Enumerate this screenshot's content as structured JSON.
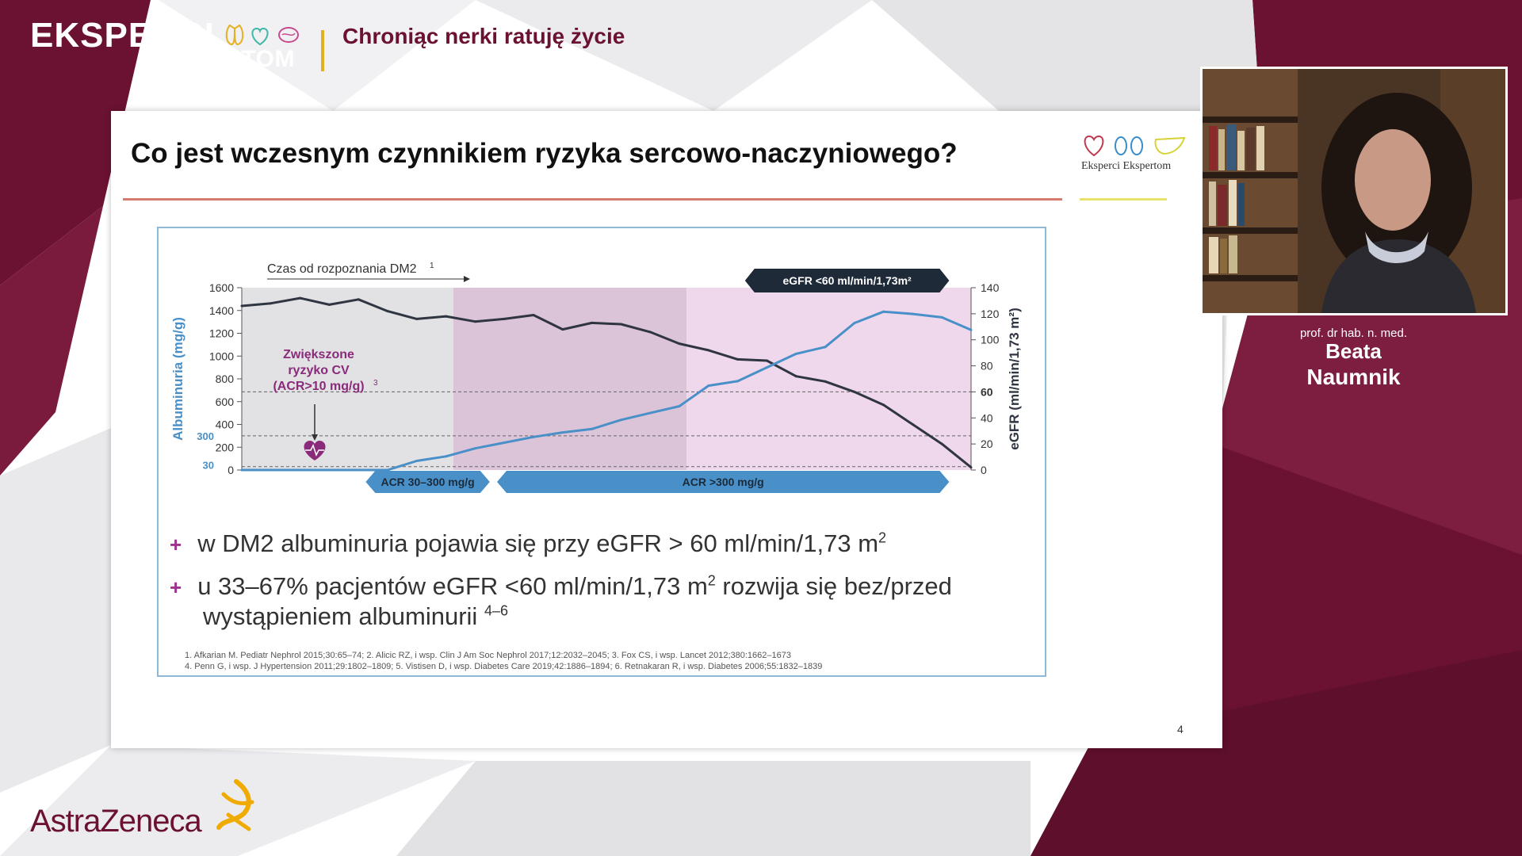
{
  "header": {
    "brand_line1": "EKSPERCI",
    "brand_line2": "EKSPERTOM",
    "tagline": "Chroniąc nerki ratuję życie"
  },
  "slide": {
    "title": "Co jest wczesnym czynnikiem ryzyka sercowo-naczyniowego?",
    "logo_text": "Eksperci Ekspertom",
    "page_number": "4",
    "bullets": [
      {
        "prefix": "+",
        "text": "w DM2 albuminuria pojawia się przy eGFR > 60 ml/min/1,73 m",
        "sup": "2",
        "line2": "",
        "tail": ""
      },
      {
        "prefix": "+",
        "text": "u 33–67% pacjentów eGFR <60 ml/min/1,73 m",
        "sup": "2",
        "line2": "wystąpieniem albuminurii ",
        "tail": " rozwija się bez/przed",
        "sup2": "4–6"
      }
    ],
    "references": [
      "1. Afkarian M. Pediatr Nephrol 2015;30:65–74; 2. Alicic RZ, i wsp. Clin J Am Soc Nephrol 2017;12:2032–2045; 3. Fox CS, i wsp. Lancet 2012;380:1662–1673",
      "4. Penn G, i wsp. J Hypertension 2011;29:1802–1809; 5. Vistisen D, i wsp. Diabetes Care 2019;42:1886–1894; 6. Retnakaran R, i wsp. Diabetes 2006;55:1832–1839"
    ]
  },
  "chart_data": {
    "type": "line",
    "title": "",
    "time_label": "Czas od rozpoznania DM2",
    "time_label_sup": "1",
    "ylabel_left": "Albuminuria (mg/g)",
    "ylabel_right": "eGFR (ml/min/1,73 m²)",
    "y_left_ticks": [
      "0",
      "200",
      "400",
      "600",
      "800",
      "1000",
      "1200",
      "1400",
      "1600"
    ],
    "y_left_range": [
      0,
      1600
    ],
    "y_right_ticks": [
      "0",
      "20",
      "40",
      "60",
      "80",
      "100",
      "120",
      "140"
    ],
    "y_right_range": [
      0,
      140
    ],
    "highlight_left": [
      "30",
      "300"
    ],
    "highlight_right": "60",
    "annotation": [
      "Zwiększone",
      "ryzyko CV",
      "(ACR>10 mg/g)"
    ],
    "annotation_sup": "3",
    "phase_labels": {
      "acr_low": "ACR 30–300 mg/g",
      "acr_high": "ACR >300 mg/g",
      "egfr": "eGFR <60 ml/min/1,73m²"
    },
    "colors": {
      "egfr": "#2f3541",
      "albuminuria": "#4a90c8",
      "phase1": "#e2e2e4",
      "phase2": "#dcc4d8",
      "phase3": "#f0d8ec",
      "accent": "#8a2a7a"
    },
    "x": [
      0,
      4,
      8,
      12,
      16,
      20,
      24,
      28,
      32,
      36,
      40,
      44,
      48,
      52,
      56,
      60,
      64,
      68,
      72,
      76,
      80,
      84,
      88,
      92,
      96,
      100
    ],
    "series": [
      {
        "name": "eGFR",
        "axis": "right",
        "values": [
          126,
          128,
          132,
          127,
          131,
          122,
          116,
          118,
          114,
          116,
          119,
          108,
          113,
          112,
          106,
          97,
          92,
          85,
          84,
          72,
          68,
          60,
          50,
          35,
          20,
          2
        ]
      },
      {
        "name": "Albuminuria",
        "axis": "left",
        "values": [
          0,
          0,
          0,
          0,
          0,
          0,
          80,
          120,
          190,
          240,
          290,
          330,
          360,
          440,
          500,
          560,
          740,
          780,
          900,
          1020,
          1080,
          1290,
          1390,
          1370,
          1340,
          1230
        ]
      }
    ]
  },
  "speaker": {
    "role": "prof. dr hab. n. med.",
    "first_name": "Beata",
    "last_name": "Naumnik"
  },
  "footer": {
    "sponsor": "AstraZeneca"
  }
}
